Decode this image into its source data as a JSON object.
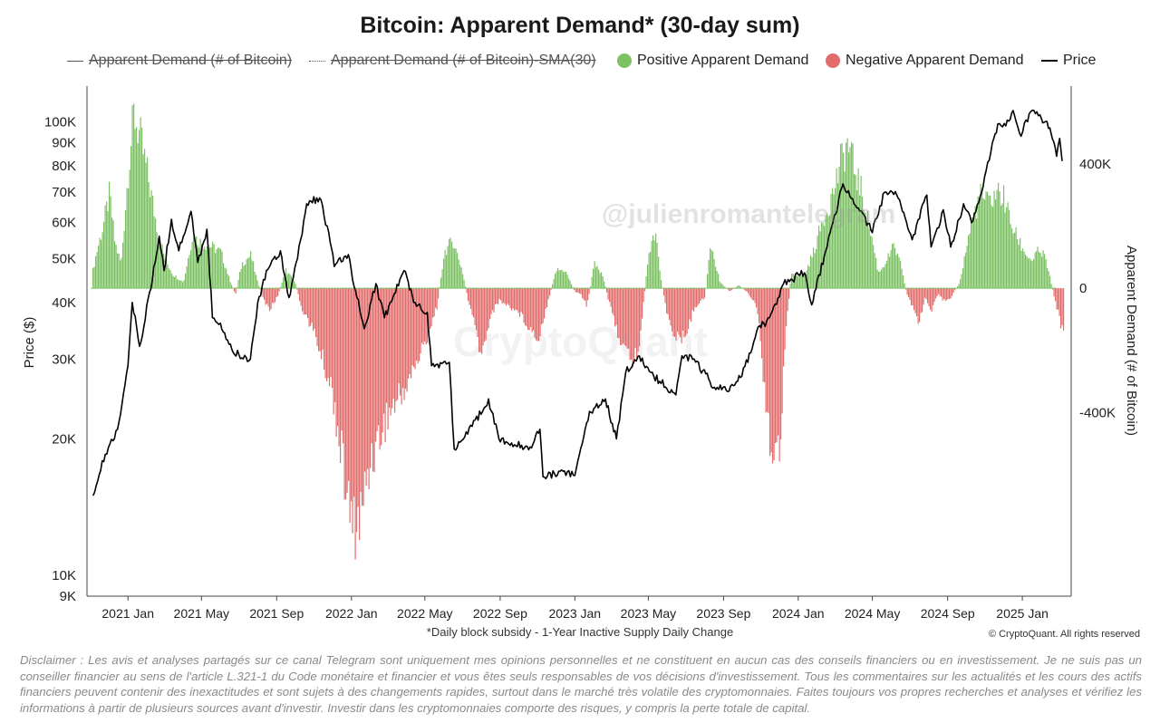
{
  "chart_data": {
    "type": "bar+line",
    "title": "Bitcoin: Apparent Demand* (30-day sum)",
    "footnote": "*Daily block subsidy - 1-Year Inactive Supply Daily Change",
    "copyright": "© CryptoQuant. All rights reserved",
    "watermark": "@julienromantelegram",
    "watermark_faint": "CryptoQuant",
    "ylabel_left": "Price ($)",
    "ylabel_right": "Apparent Demand (# of Bitcoin)",
    "y_left_scale": "log",
    "y_left_range": [
      9000,
      120000
    ],
    "y_left_ticks": [
      {
        "value": 9000,
        "label": "9K"
      },
      {
        "value": 10000,
        "label": "10K"
      },
      {
        "value": 20000,
        "label": "20K"
      },
      {
        "value": 30000,
        "label": "30K"
      },
      {
        "value": 40000,
        "label": "40K"
      },
      {
        "value": 50000,
        "label": "50K"
      },
      {
        "value": 60000,
        "label": "60K"
      },
      {
        "value": 70000,
        "label": "70K"
      },
      {
        "value": 80000,
        "label": "80K"
      },
      {
        "value": 90000,
        "label": "90K"
      },
      {
        "value": 100000,
        "label": "100K"
      }
    ],
    "y_right_range": [
      -990000,
      650000
    ],
    "y_right_ticks": [
      {
        "value": 400000,
        "label": "400K"
      },
      {
        "value": 0,
        "label": "0"
      },
      {
        "value": -400000,
        "label": "-400K"
      }
    ],
    "x_range": [
      "2020-11-01",
      "2025-03-10"
    ],
    "x_ticks": [
      {
        "date": "2021-01-01",
        "label": "2021 Jan"
      },
      {
        "date": "2021-05-01",
        "label": "2021 May"
      },
      {
        "date": "2021-09-01",
        "label": "2021 Sep"
      },
      {
        "date": "2022-01-01",
        "label": "2022 Jan"
      },
      {
        "date": "2022-05-01",
        "label": "2022 May"
      },
      {
        "date": "2022-09-01",
        "label": "2022 Sep"
      },
      {
        "date": "2023-01-01",
        "label": "2023 Jan"
      },
      {
        "date": "2023-05-01",
        "label": "2023 May"
      },
      {
        "date": "2023-09-01",
        "label": "2023 Sep"
      },
      {
        "date": "2024-01-01",
        "label": "2024 Jan"
      },
      {
        "date": "2024-05-01",
        "label": "2024 May"
      },
      {
        "date": "2024-09-01",
        "label": "2024 Sep"
      },
      {
        "date": "2025-01-01",
        "label": "2025 Jan"
      }
    ],
    "legend": [
      {
        "name": "Apparent Demand (# of Bitcoin)",
        "style": "line",
        "hidden": true
      },
      {
        "name": "Apparent Demand (# of Bitcoin)-SMA(30)",
        "style": "dotted",
        "hidden": true
      },
      {
        "name": "Positive Apparent Demand",
        "style": "circle",
        "color": "#7cc164"
      },
      {
        "name": "Negative Apparent Demand",
        "style": "circle",
        "color": "#e26b6b"
      },
      {
        "name": "Price",
        "style": "line",
        "color": "#000000"
      }
    ],
    "colors": {
      "positive": "#7cc164",
      "negative": "#e26b6b",
      "price": "#000000",
      "axis": "#444444"
    },
    "price_series": {
      "name": "Price",
      "points": [
        {
          "date": "2020-11-05",
          "value": 15000
        },
        {
          "date": "2020-11-25",
          "value": 18500
        },
        {
          "date": "2020-12-15",
          "value": 21000
        },
        {
          "date": "2021-01-01",
          "value": 29000
        },
        {
          "date": "2021-01-08",
          "value": 40000
        },
        {
          "date": "2021-01-20",
          "value": 32000
        },
        {
          "date": "2021-02-10",
          "value": 45000
        },
        {
          "date": "2021-02-21",
          "value": 56000
        },
        {
          "date": "2021-03-01",
          "value": 47000
        },
        {
          "date": "2021-03-13",
          "value": 61000
        },
        {
          "date": "2021-03-25",
          "value": 52000
        },
        {
          "date": "2021-04-14",
          "value": 63500
        },
        {
          "date": "2021-04-25",
          "value": 49000
        },
        {
          "date": "2021-05-10",
          "value": 58000
        },
        {
          "date": "2021-05-19",
          "value": 37000
        },
        {
          "date": "2021-06-01",
          "value": 36000
        },
        {
          "date": "2021-06-22",
          "value": 31000
        },
        {
          "date": "2021-07-20",
          "value": 30000
        },
        {
          "date": "2021-08-01",
          "value": 40000
        },
        {
          "date": "2021-08-15",
          "value": 47000
        },
        {
          "date": "2021-09-07",
          "value": 52000
        },
        {
          "date": "2021-09-21",
          "value": 41000
        },
        {
          "date": "2021-10-05",
          "value": 50000
        },
        {
          "date": "2021-10-20",
          "value": 66000
        },
        {
          "date": "2021-11-10",
          "value": 68000
        },
        {
          "date": "2021-11-25",
          "value": 57000
        },
        {
          "date": "2021-12-04",
          "value": 48000
        },
        {
          "date": "2021-12-27",
          "value": 51000
        },
        {
          "date": "2022-01-10",
          "value": 41000
        },
        {
          "date": "2022-01-22",
          "value": 35000
        },
        {
          "date": "2022-02-10",
          "value": 44000
        },
        {
          "date": "2022-02-24",
          "value": 37000
        },
        {
          "date": "2022-03-28",
          "value": 47000
        },
        {
          "date": "2022-04-15",
          "value": 40000
        },
        {
          "date": "2022-05-05",
          "value": 38000
        },
        {
          "date": "2022-05-12",
          "value": 29000
        },
        {
          "date": "2022-06-10",
          "value": 29500
        },
        {
          "date": "2022-06-18",
          "value": 19000
        },
        {
          "date": "2022-07-10",
          "value": 20500
        },
        {
          "date": "2022-08-13",
          "value": 24500
        },
        {
          "date": "2022-08-30",
          "value": 20000
        },
        {
          "date": "2022-09-15",
          "value": 19500
        },
        {
          "date": "2022-10-20",
          "value": 19200
        },
        {
          "date": "2022-11-05",
          "value": 21000
        },
        {
          "date": "2022-11-10",
          "value": 16500
        },
        {
          "date": "2022-12-15",
          "value": 17000
        },
        {
          "date": "2023-01-01",
          "value": 16600
        },
        {
          "date": "2023-01-25",
          "value": 23000
        },
        {
          "date": "2023-02-20",
          "value": 24500
        },
        {
          "date": "2023-03-10",
          "value": 20000
        },
        {
          "date": "2023-03-25",
          "value": 28000
        },
        {
          "date": "2023-04-14",
          "value": 30400
        },
        {
          "date": "2023-05-10",
          "value": 27500
        },
        {
          "date": "2023-06-15",
          "value": 25000
        },
        {
          "date": "2023-06-25",
          "value": 30500
        },
        {
          "date": "2023-07-15",
          "value": 30000
        },
        {
          "date": "2023-08-17",
          "value": 26000
        },
        {
          "date": "2023-09-10",
          "value": 25500
        },
        {
          "date": "2023-10-01",
          "value": 27500
        },
        {
          "date": "2023-10-25",
          "value": 34500
        },
        {
          "date": "2023-11-15",
          "value": 37000
        },
        {
          "date": "2023-12-08",
          "value": 44000
        },
        {
          "date": "2024-01-11",
          "value": 46500
        },
        {
          "date": "2024-01-23",
          "value": 39500
        },
        {
          "date": "2024-02-15",
          "value": 52000
        },
        {
          "date": "2024-03-14",
          "value": 73000
        },
        {
          "date": "2024-04-01",
          "value": 66000
        },
        {
          "date": "2024-04-15",
          "value": 63000
        },
        {
          "date": "2024-05-01",
          "value": 57000
        },
        {
          "date": "2024-05-21",
          "value": 70000
        },
        {
          "date": "2024-06-10",
          "value": 69000
        },
        {
          "date": "2024-07-05",
          "value": 55000
        },
        {
          "date": "2024-07-29",
          "value": 69000
        },
        {
          "date": "2024-08-05",
          "value": 53000
        },
        {
          "date": "2024-08-25",
          "value": 64000
        },
        {
          "date": "2024-09-06",
          "value": 53000
        },
        {
          "date": "2024-09-27",
          "value": 66000
        },
        {
          "date": "2024-10-10",
          "value": 60000
        },
        {
          "date": "2024-10-29",
          "value": 72000
        },
        {
          "date": "2024-11-13",
          "value": 90000
        },
        {
          "date": "2024-11-22",
          "value": 99000
        },
        {
          "date": "2024-12-05",
          "value": 98000
        },
        {
          "date": "2024-12-17",
          "value": 106000
        },
        {
          "date": "2024-12-30",
          "value": 93000
        },
        {
          "date": "2025-01-07",
          "value": 101000
        },
        {
          "date": "2025-01-20",
          "value": 106000
        },
        {
          "date": "2025-02-01",
          "value": 102000
        },
        {
          "date": "2025-02-15",
          "value": 97000
        },
        {
          "date": "2025-02-26",
          "value": 84000
        },
        {
          "date": "2025-03-03",
          "value": 92000
        },
        {
          "date": "2025-03-07",
          "value": 82000
        }
      ]
    },
    "demand_series": {
      "name": "Apparent Demand (30-day sum)",
      "points": [
        {
          "date": "2020-11-01",
          "value": 30000
        },
        {
          "date": "2020-11-10",
          "value": 120000
        },
        {
          "date": "2020-11-20",
          "value": 200000
        },
        {
          "date": "2020-12-01",
          "value": 310000
        },
        {
          "date": "2020-12-10",
          "value": 150000
        },
        {
          "date": "2020-12-20",
          "value": 80000
        },
        {
          "date": "2021-01-01",
          "value": 400000
        },
        {
          "date": "2021-01-10",
          "value": 580000
        },
        {
          "date": "2021-01-20",
          "value": 500000
        },
        {
          "date": "2021-02-01",
          "value": 380000
        },
        {
          "date": "2021-02-15",
          "value": 220000
        },
        {
          "date": "2021-03-01",
          "value": 100000
        },
        {
          "date": "2021-03-15",
          "value": 45000
        },
        {
          "date": "2021-04-01",
          "value": 20000
        },
        {
          "date": "2021-04-15",
          "value": 170000
        },
        {
          "date": "2021-05-01",
          "value": 150000
        },
        {
          "date": "2021-05-15",
          "value": 140000
        },
        {
          "date": "2021-06-01",
          "value": 120000
        },
        {
          "date": "2021-06-15",
          "value": 30000
        },
        {
          "date": "2021-06-25",
          "value": -20000
        },
        {
          "date": "2021-07-05",
          "value": 80000
        },
        {
          "date": "2021-07-20",
          "value": 110000
        },
        {
          "date": "2021-07-31",
          "value": 20000
        },
        {
          "date": "2021-08-10",
          "value": -40000
        },
        {
          "date": "2021-08-20",
          "value": -70000
        },
        {
          "date": "2021-09-01",
          "value": -30000
        },
        {
          "date": "2021-09-15",
          "value": 60000
        },
        {
          "date": "2021-09-30",
          "value": 20000
        },
        {
          "date": "2021-10-10",
          "value": -60000
        },
        {
          "date": "2021-11-01",
          "value": -150000
        },
        {
          "date": "2021-12-01",
          "value": -350000
        },
        {
          "date": "2022-01-01",
          "value": -800000
        },
        {
          "date": "2022-01-15",
          "value": -760000
        },
        {
          "date": "2022-02-01",
          "value": -560000
        },
        {
          "date": "2022-03-01",
          "value": -420000
        },
        {
          "date": "2022-04-01",
          "value": -320000
        },
        {
          "date": "2022-05-01",
          "value": -180000
        },
        {
          "date": "2022-05-20",
          "value": -60000
        },
        {
          "date": "2022-06-01",
          "value": 120000
        },
        {
          "date": "2022-06-15",
          "value": 160000
        },
        {
          "date": "2022-06-30",
          "value": 60000
        },
        {
          "date": "2022-07-10",
          "value": -40000
        },
        {
          "date": "2022-07-20",
          "value": -120000
        },
        {
          "date": "2022-08-01",
          "value": -230000
        },
        {
          "date": "2022-08-15",
          "value": -90000
        },
        {
          "date": "2022-08-30",
          "value": -40000
        },
        {
          "date": "2022-09-15",
          "value": -60000
        },
        {
          "date": "2022-10-01",
          "value": -80000
        },
        {
          "date": "2022-10-15",
          "value": -120000
        },
        {
          "date": "2022-11-01",
          "value": -170000
        },
        {
          "date": "2022-11-15",
          "value": -60000
        },
        {
          "date": "2022-12-01",
          "value": 60000
        },
        {
          "date": "2022-12-15",
          "value": 60000
        },
        {
          "date": "2022-12-31",
          "value": -10000
        },
        {
          "date": "2023-01-10",
          "value": -20000
        },
        {
          "date": "2023-01-20",
          "value": -60000
        },
        {
          "date": "2023-02-01",
          "value": 80000
        },
        {
          "date": "2023-02-15",
          "value": 40000
        },
        {
          "date": "2023-03-01",
          "value": -80000
        },
        {
          "date": "2023-03-20",
          "value": -200000
        },
        {
          "date": "2023-04-05",
          "value": -240000
        },
        {
          "date": "2023-04-15",
          "value": -200000
        },
        {
          "date": "2023-05-01",
          "value": 120000
        },
        {
          "date": "2023-05-12",
          "value": 180000
        },
        {
          "date": "2023-05-20",
          "value": 40000
        },
        {
          "date": "2023-06-01",
          "value": -100000
        },
        {
          "date": "2023-06-20",
          "value": -180000
        },
        {
          "date": "2023-07-01",
          "value": -150000
        },
        {
          "date": "2023-07-15",
          "value": -60000
        },
        {
          "date": "2023-08-01",
          "value": -30000
        },
        {
          "date": "2023-08-10",
          "value": 150000
        },
        {
          "date": "2023-08-25",
          "value": 20000
        },
        {
          "date": "2023-09-10",
          "value": -10000
        },
        {
          "date": "2023-09-25",
          "value": 10000
        },
        {
          "date": "2023-10-10",
          "value": -15000
        },
        {
          "date": "2023-10-25",
          "value": -60000
        },
        {
          "date": "2023-11-05",
          "value": -300000
        },
        {
          "date": "2023-11-20",
          "value": -580000
        },
        {
          "date": "2023-12-01",
          "value": -520000
        },
        {
          "date": "2023-12-10",
          "value": -150000
        },
        {
          "date": "2023-12-20",
          "value": 50000
        },
        {
          "date": "2024-01-10",
          "value": 40000
        },
        {
          "date": "2024-01-25",
          "value": 120000
        },
        {
          "date": "2024-02-10",
          "value": 230000
        },
        {
          "date": "2024-02-25",
          "value": 310000
        },
        {
          "date": "2024-03-10",
          "value": 420000
        },
        {
          "date": "2024-03-20",
          "value": 480000
        },
        {
          "date": "2024-04-01",
          "value": 400000
        },
        {
          "date": "2024-04-15",
          "value": 300000
        },
        {
          "date": "2024-05-01",
          "value": 150000
        },
        {
          "date": "2024-05-10",
          "value": 50000
        },
        {
          "date": "2024-05-20",
          "value": 80000
        },
        {
          "date": "2024-06-05",
          "value": 140000
        },
        {
          "date": "2024-06-15",
          "value": 80000
        },
        {
          "date": "2024-06-25",
          "value": -15000
        },
        {
          "date": "2024-07-05",
          "value": -60000
        },
        {
          "date": "2024-07-15",
          "value": -120000
        },
        {
          "date": "2024-07-25",
          "value": -30000
        },
        {
          "date": "2024-08-05",
          "value": -80000
        },
        {
          "date": "2024-08-15",
          "value": -20000
        },
        {
          "date": "2024-08-25",
          "value": -40000
        },
        {
          "date": "2024-09-05",
          "value": -30000
        },
        {
          "date": "2024-09-20",
          "value": 20000
        },
        {
          "date": "2024-10-10",
          "value": 230000
        },
        {
          "date": "2024-10-25",
          "value": 310000
        },
        {
          "date": "2024-11-05",
          "value": 280000
        },
        {
          "date": "2024-11-20",
          "value": 320000
        },
        {
          "date": "2024-12-01",
          "value": 300000
        },
        {
          "date": "2024-12-15",
          "value": 200000
        },
        {
          "date": "2025-01-01",
          "value": 130000
        },
        {
          "date": "2025-01-15",
          "value": 90000
        },
        {
          "date": "2025-01-25",
          "value": 120000
        },
        {
          "date": "2025-02-05",
          "value": 110000
        },
        {
          "date": "2025-02-15",
          "value": 30000
        },
        {
          "date": "2025-02-25",
          "value": -60000
        },
        {
          "date": "2025-03-07",
          "value": -140000
        }
      ]
    }
  }
}
